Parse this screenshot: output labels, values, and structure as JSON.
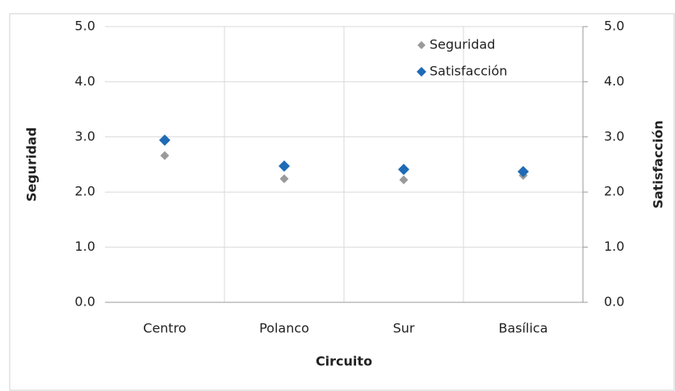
{
  "chart_data": {
    "type": "scatter",
    "categories": [
      "Centro",
      "Polanco",
      "Sur",
      "Basílica"
    ],
    "series": [
      {
        "name": "Seguridad",
        "color": "#9a9a9a",
        "values": [
          2.66,
          2.24,
          2.22,
          2.3
        ]
      },
      {
        "name": "Satisfacción",
        "color": "#1f6bb5",
        "values": [
          2.94,
          2.47,
          2.41,
          2.37
        ],
        "axis": "y2"
      }
    ],
    "ylim": [
      0,
      5
    ],
    "yticks": [
      {
        "value": 0,
        "label": "0.0"
      },
      {
        "value": 1,
        "label": "1.0"
      },
      {
        "value": 2,
        "label": "2.0"
      },
      {
        "value": 3,
        "label": "3.0"
      },
      {
        "value": 4,
        "label": "4.0"
      },
      {
        "value": 5,
        "label": "5.0"
      }
    ],
    "y2lim": [
      0,
      5
    ],
    "y2ticks": [
      {
        "value": 0,
        "label": "0.0"
      },
      {
        "value": 1,
        "label": "1.0"
      },
      {
        "value": 2,
        "label": "2.0"
      },
      {
        "value": 3,
        "label": "3.0"
      },
      {
        "value": 4,
        "label": "4.0"
      },
      {
        "value": 5,
        "label": "5.0"
      }
    ],
    "xlabel": "Circuito",
    "ylabel": "Seguridad",
    "y2label": "Satisfacción",
    "grid": true,
    "legend": "upper right"
  }
}
